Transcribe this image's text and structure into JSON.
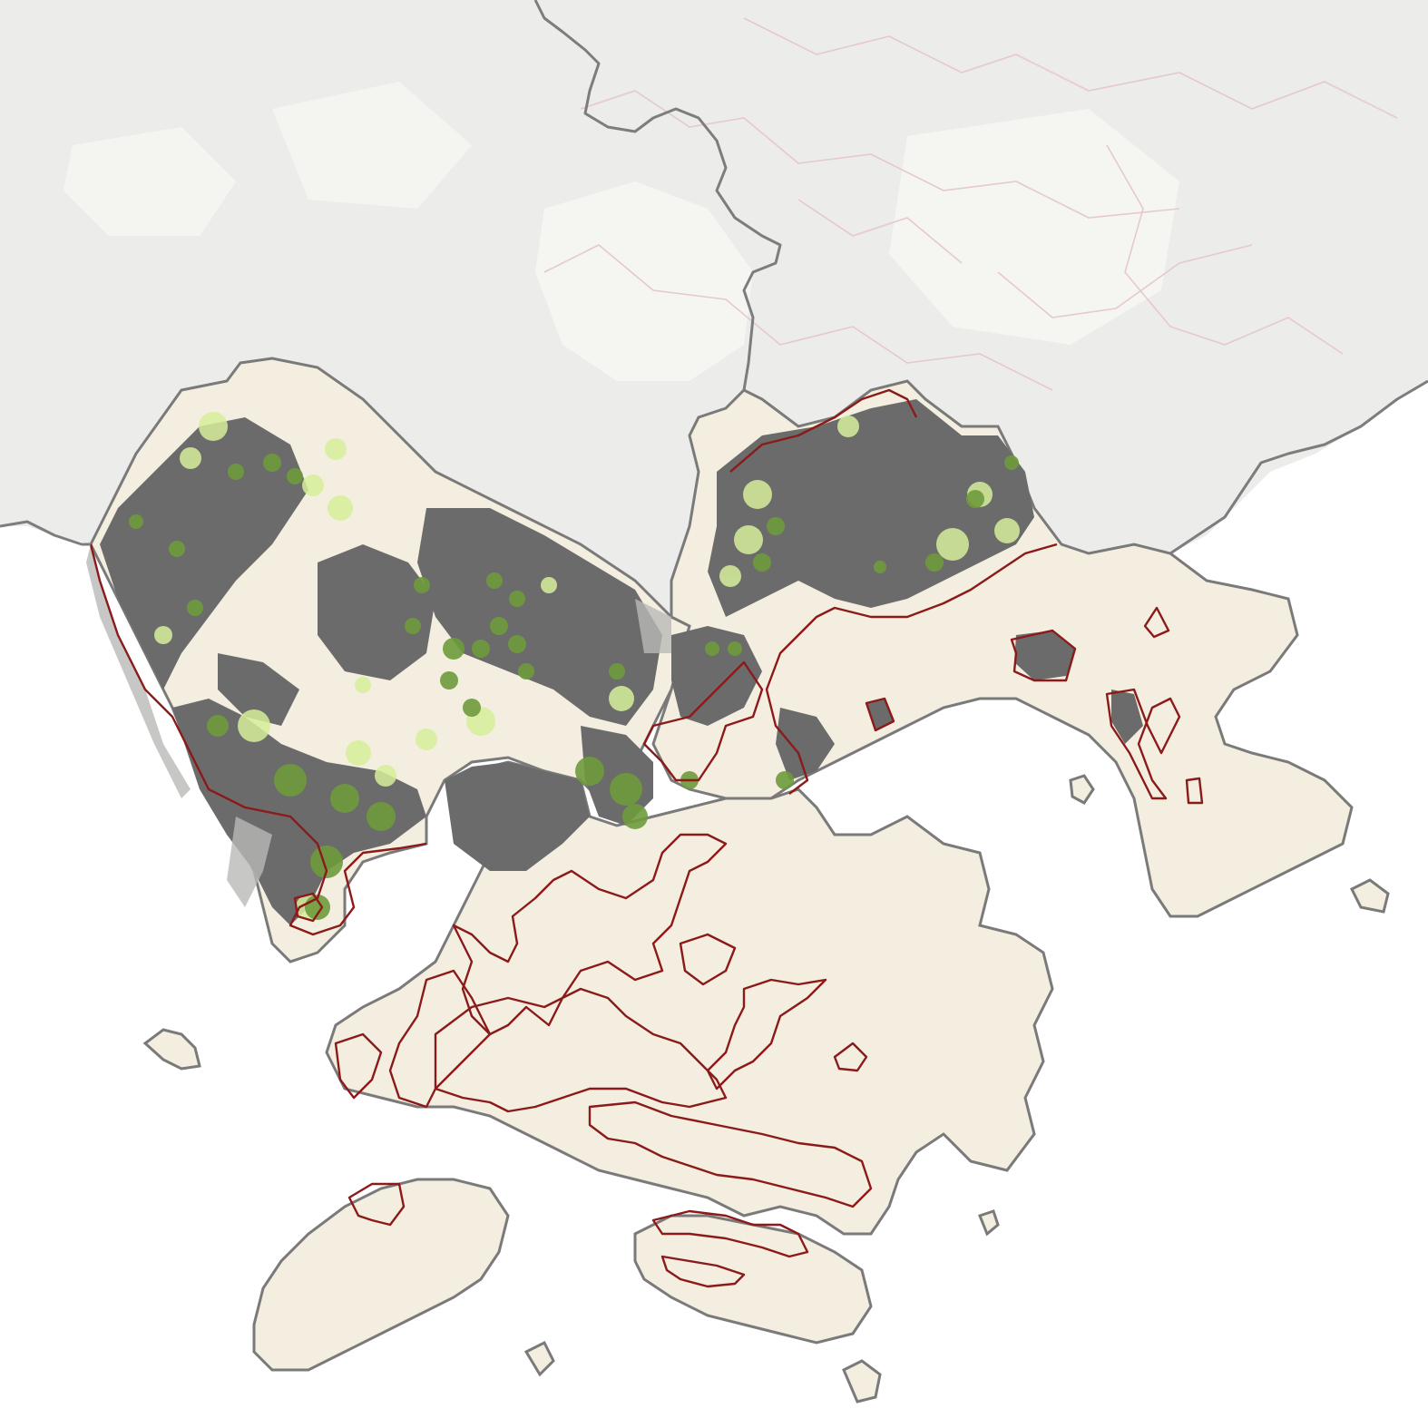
{
  "map": {
    "colors": {
      "sea": "#ffffff",
      "hinterland": "#ebebe8",
      "hinterland_light": "#f4f4f1",
      "study_area_fill": "#f3eedf",
      "regional_boundary": "#7a7a7a",
      "built_up": "#6b6b6b",
      "built_up_light": "#a9a9a9",
      "protected_area_outline": "#8b1a1a",
      "protected_area_faint": "#e8c8cc",
      "green_cluster_dark": "#6e9a3c",
      "green_cluster_light": "#d8ef9c",
      "coast_outline": "#8a8a8a"
    },
    "layers": [
      "hinterland-basemap",
      "study-area-land",
      "built-up-areas",
      "green-space-clusters",
      "protected-area-boundaries",
      "regional-boundary"
    ]
  }
}
